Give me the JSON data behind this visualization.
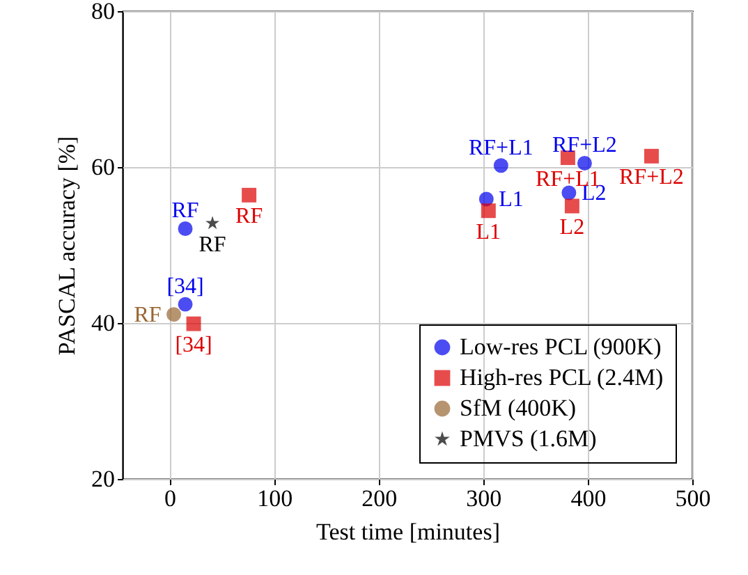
{
  "chart_data": {
    "type": "scatter",
    "xlabel": "Test time [minutes]",
    "ylabel": "PASCAL accuracy [%]",
    "xlim": [
      -45,
      500
    ],
    "xticks": [
      0,
      100,
      200,
      300,
      400,
      500
    ],
    "ylim": [
      20,
      80
    ],
    "yticks": [
      20,
      40,
      60,
      80
    ],
    "grid": true,
    "legend": "bottom right",
    "series": [
      {
        "name": "Low-res PCL (900K)",
        "color": "#0000ee",
        "marker": "circle",
        "x": [
          15,
          15,
          303,
          317,
          382,
          397
        ],
        "values": [
          52.1,
          42.4,
          55.9,
          60.2,
          56.7,
          60.5
        ]
      },
      {
        "name": "High-res PCL (2.4M)",
        "color": "#dd0000",
        "marker": "square",
        "x": [
          76,
          23,
          305,
          381,
          385,
          461
        ],
        "values": [
          56.4,
          39.9,
          54.4,
          61.2,
          55.0,
          61.4
        ]
      },
      {
        "name": "SfM (400K)",
        "color": "#996633",
        "marker": "circle",
        "x": [
          4
        ],
        "values": [
          41.1
        ]
      },
      {
        "name": "PMVS (1.6M)",
        "color": "#000000",
        "marker": "star",
        "x": [
          41
        ],
        "values": [
          52.8
        ]
      }
    ],
    "annotations": [
      {
        "text": "RF",
        "x": 15,
        "y": 52.1
      },
      {
        "text": "[34]",
        "x": 15,
        "y": 42.4
      },
      {
        "text": "L1",
        "x": 303,
        "y": 55.9
      },
      {
        "text": "RF+L1",
        "x": 317,
        "y": 60.2
      },
      {
        "text": "L2",
        "x": 382,
        "y": 56.7
      },
      {
        "text": "RF+L2",
        "x": 397,
        "y": 60.5
      },
      {
        "text": "RF",
        "x": 76,
        "y": 56.4
      },
      {
        "text": "[34]",
        "x": 23,
        "y": 39.9
      },
      {
        "text": "L1",
        "x": 305,
        "y": 54.4
      },
      {
        "text": "RF+L1",
        "x": 381,
        "y": 61.2
      },
      {
        "text": "L2",
        "x": 385,
        "y": 55.0
      },
      {
        "text": "RF+L2",
        "x": 461,
        "y": 61.4
      },
      {
        "text": "RF",
        "x": 4,
        "y": 41.1
      },
      {
        "text": "RF",
        "x": 41,
        "y": 52.8
      }
    ]
  }
}
